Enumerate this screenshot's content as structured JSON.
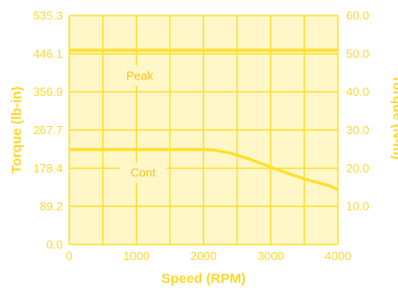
{
  "chart_data": {
    "type": "line",
    "xlabel": "Speed (RPM)",
    "ylabel": "Torque (lb-in)",
    "y2label": "Torque (N-m)",
    "xlim": [
      0,
      4000
    ],
    "ylim": [
      0,
      535.3
    ],
    "y2lim": [
      0,
      60
    ],
    "x_ticks": [
      "0",
      "1000",
      "2000",
      "3000",
      "4000"
    ],
    "y_ticks": [
      "0.0",
      "89.2",
      "178.4",
      "267.7",
      "356.9",
      "446.1",
      "535.3"
    ],
    "y2_ticks": [
      "10.0",
      "20.0",
      "30.0",
      "40.0",
      "50.0",
      "60.0"
    ],
    "grid": true,
    "series": [
      {
        "name": "Peak",
        "x": [
          0,
          4000
        ],
        "y": [
          454,
          454
        ]
      },
      {
        "name": "Cont",
        "x": [
          0,
          2000,
          2150,
          2400,
          2700,
          3000,
          3300,
          3600,
          3900,
          4000
        ],
        "y": [
          222,
          222,
          221,
          214,
          199,
          181,
          164,
          149,
          136,
          128
        ]
      }
    ],
    "colors": {
      "line": "#fde02e",
      "grid": "#fde02e",
      "plot_bg": "#fff7c7",
      "text": "#fdd82c",
      "label_text": "#fac11a"
    }
  }
}
